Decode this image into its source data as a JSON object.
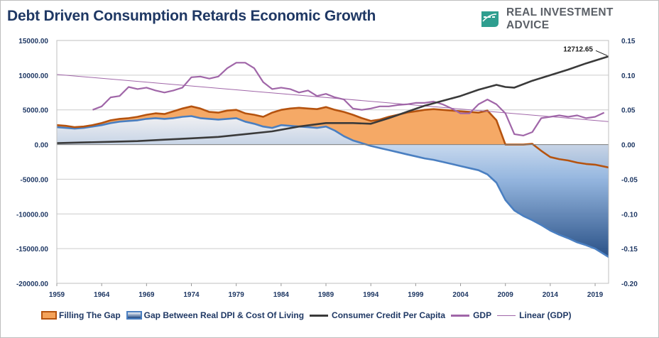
{
  "title": "Debt Driven Consumption Retards Economic Growth",
  "brand": {
    "name_part1": "REAL ",
    "name_part2": "INVESTMENT ADVICE",
    "logo_icon": "chart-arrow-logo-icon"
  },
  "colors": {
    "gap_fill": "#f4a259",
    "gap_stroke": "#b5530f",
    "dpi_fill_top": "#dfe8f3",
    "dpi_fill_bottom": "#1e4780",
    "dpi_stroke": "#4a7fc1",
    "credit": "#3a3a3a",
    "gdp": "#a066a8",
    "linear": "#a066a8",
    "axis_text": "#1f3864",
    "grid": "#cccccc"
  },
  "chart_data": {
    "type": "area",
    "x_ticks": [
      "1959",
      "1964",
      "1969",
      "1974",
      "1979",
      "1984",
      "1989",
      "1994",
      "1999",
      "2004",
      "2009",
      "2014",
      "2019"
    ],
    "y_left": {
      "min": -20000,
      "max": 15000,
      "step": 5000,
      "tick_labels": [
        "15000.00",
        "10000.00",
        "5000.00",
        "0.00",
        "-5000.00",
        "-10000.00",
        "-15000.00",
        "-20000.00"
      ]
    },
    "y_right": {
      "min": -0.2,
      "max": 0.15,
      "step": 0.05,
      "tick_labels": [
        "0.15",
        "0.10",
        "0.05",
        "0.00",
        "-0.05",
        "-0.10",
        "-0.15",
        "-0.20"
      ]
    },
    "grid": true,
    "legend_position": "bottom",
    "annotation": {
      "label": "12712.65",
      "x": 2020.5,
      "y": 12712.65
    },
    "series": [
      {
        "name": "Filling The Gap",
        "type": "area",
        "axis": "left",
        "x": [
          1959,
          1960,
          1961,
          1962,
          1963,
          1964,
          1965,
          1966,
          1967,
          1968,
          1969,
          1970,
          1971,
          1972,
          1973,
          1974,
          1975,
          1976,
          1977,
          1978,
          1979,
          1980,
          1981,
          1982,
          1983,
          1984,
          1985,
          1986,
          1987,
          1988,
          1989,
          1990,
          1991,
          1992,
          1993,
          1994,
          1995,
          1996,
          1997,
          1998,
          1999,
          2000,
          2001,
          2002,
          2003,
          2004,
          2005,
          2006,
          2007,
          2008,
          2009,
          2010,
          2011,
          2012,
          2013,
          2014,
          2015,
          2016,
          2017,
          2018,
          2019,
          2020.5
        ],
        "y": [
          2800,
          2700,
          2500,
          2600,
          2800,
          3100,
          3500,
          3700,
          3800,
          4000,
          4300,
          4500,
          4400,
          4800,
          5200,
          5500,
          5200,
          4700,
          4600,
          4900,
          5000,
          4500,
          4300,
          4000,
          4600,
          5000,
          5200,
          5300,
          5200,
          5100,
          5400,
          5000,
          4700,
          4300,
          3800,
          3400,
          3600,
          4000,
          4300,
          4600,
          4800,
          5000,
          5100,
          5000,
          4900,
          4800,
          4700,
          4600,
          4900,
          3500,
          0,
          0,
          0,
          100,
          -900,
          -1800,
          -2100,
          -2300,
          -2600,
          -2800,
          -2900,
          -3300
        ]
      },
      {
        "name": "Gap Between Real DPI & Cost Of Living",
        "type": "area",
        "axis": "left",
        "x": [
          1959,
          1960,
          1961,
          1962,
          1963,
          1964,
          1965,
          1966,
          1967,
          1968,
          1969,
          1970,
          1971,
          1972,
          1973,
          1974,
          1975,
          1976,
          1977,
          1978,
          1979,
          1980,
          1981,
          1982,
          1983,
          1984,
          1985,
          1986,
          1987,
          1988,
          1989,
          1990,
          1991,
          1992,
          1993,
          1994,
          1995,
          1996,
          1997,
          1998,
          1999,
          2000,
          2001,
          2002,
          2003,
          2004,
          2005,
          2006,
          2007,
          2008,
          2009,
          2010,
          2011,
          2012,
          2013,
          2014,
          2015,
          2016,
          2017,
          2018,
          2019,
          2020.5
        ],
        "y": [
          2500,
          2400,
          2300,
          2400,
          2600,
          2800,
          3100,
          3300,
          3400,
          3500,
          3700,
          3800,
          3700,
          3800,
          4000,
          4100,
          3800,
          3700,
          3600,
          3700,
          3800,
          3300,
          3000,
          2600,
          2400,
          2800,
          2700,
          2600,
          2500,
          2400,
          2600,
          2000,
          1200,
          600,
          200,
          -200,
          -500,
          -800,
          -1100,
          -1400,
          -1700,
          -2000,
          -2200,
          -2500,
          -2800,
          -3100,
          -3400,
          -3700,
          -4300,
          -5500,
          -8000,
          -9500,
          -10300,
          -10900,
          -11600,
          -12400,
          -13000,
          -13500,
          -14100,
          -14500,
          -15000,
          -16200
        ]
      },
      {
        "name": "Consumer Credit Per Capita",
        "type": "line",
        "axis": "left",
        "x": [
          1959,
          1962,
          1965,
          1968,
          1971,
          1974,
          1977,
          1980,
          1983,
          1986,
          1989,
          1992,
          1994,
          1996,
          1998,
          2000,
          2002,
          2004,
          2006,
          2008,
          2009,
          2010,
          2012,
          2014,
          2016,
          2018,
          2020.5
        ],
        "y": [
          200,
          300,
          400,
          500,
          700,
          900,
          1100,
          1500,
          1900,
          2600,
          3100,
          3100,
          3000,
          3800,
          4700,
          5600,
          6300,
          7000,
          7900,
          8600,
          8300,
          8200,
          9200,
          10000,
          10800,
          11700,
          12712.65
        ]
      },
      {
        "name": "GDP",
        "type": "line",
        "axis": "right",
        "x": [
          1963,
          1964,
          1965,
          1966,
          1967,
          1968,
          1969,
          1970,
          1971,
          1972,
          1973,
          1974,
          1975,
          1976,
          1977,
          1978,
          1979,
          1980,
          1981,
          1982,
          1983,
          1984,
          1985,
          1986,
          1987,
          1988,
          1989,
          1990,
          1991,
          1992,
          1993,
          1994,
          1995,
          1996,
          1997,
          1998,
          1999,
          2000,
          2001,
          2002,
          2003,
          2004,
          2005,
          2006,
          2007,
          2008,
          2009,
          2010,
          2011,
          2012,
          2013,
          2014,
          2015,
          2016,
          2017,
          2018,
          2019,
          2020
        ],
        "y": [
          0.05,
          0.055,
          0.068,
          0.07,
          0.083,
          0.08,
          0.082,
          0.078,
          0.075,
          0.078,
          0.082,
          0.097,
          0.098,
          0.095,
          0.098,
          0.11,
          0.118,
          0.118,
          0.11,
          0.09,
          0.08,
          0.082,
          0.08,
          0.075,
          0.078,
          0.07,
          0.073,
          0.068,
          0.065,
          0.052,
          0.05,
          0.052,
          0.055,
          0.055,
          0.057,
          0.058,
          0.06,
          0.06,
          0.062,
          0.058,
          0.052,
          0.045,
          0.045,
          0.058,
          0.065,
          0.058,
          0.045,
          0.015,
          0.013,
          0.018,
          0.038,
          0.04,
          0.042,
          0.04,
          0.042,
          0.038,
          0.04,
          0.046
        ]
      },
      {
        "name": "Linear (GDP)",
        "type": "line",
        "axis": "right",
        "x": [
          1959,
          2020.5
        ],
        "y": [
          0.101,
          0.033
        ]
      }
    ]
  }
}
